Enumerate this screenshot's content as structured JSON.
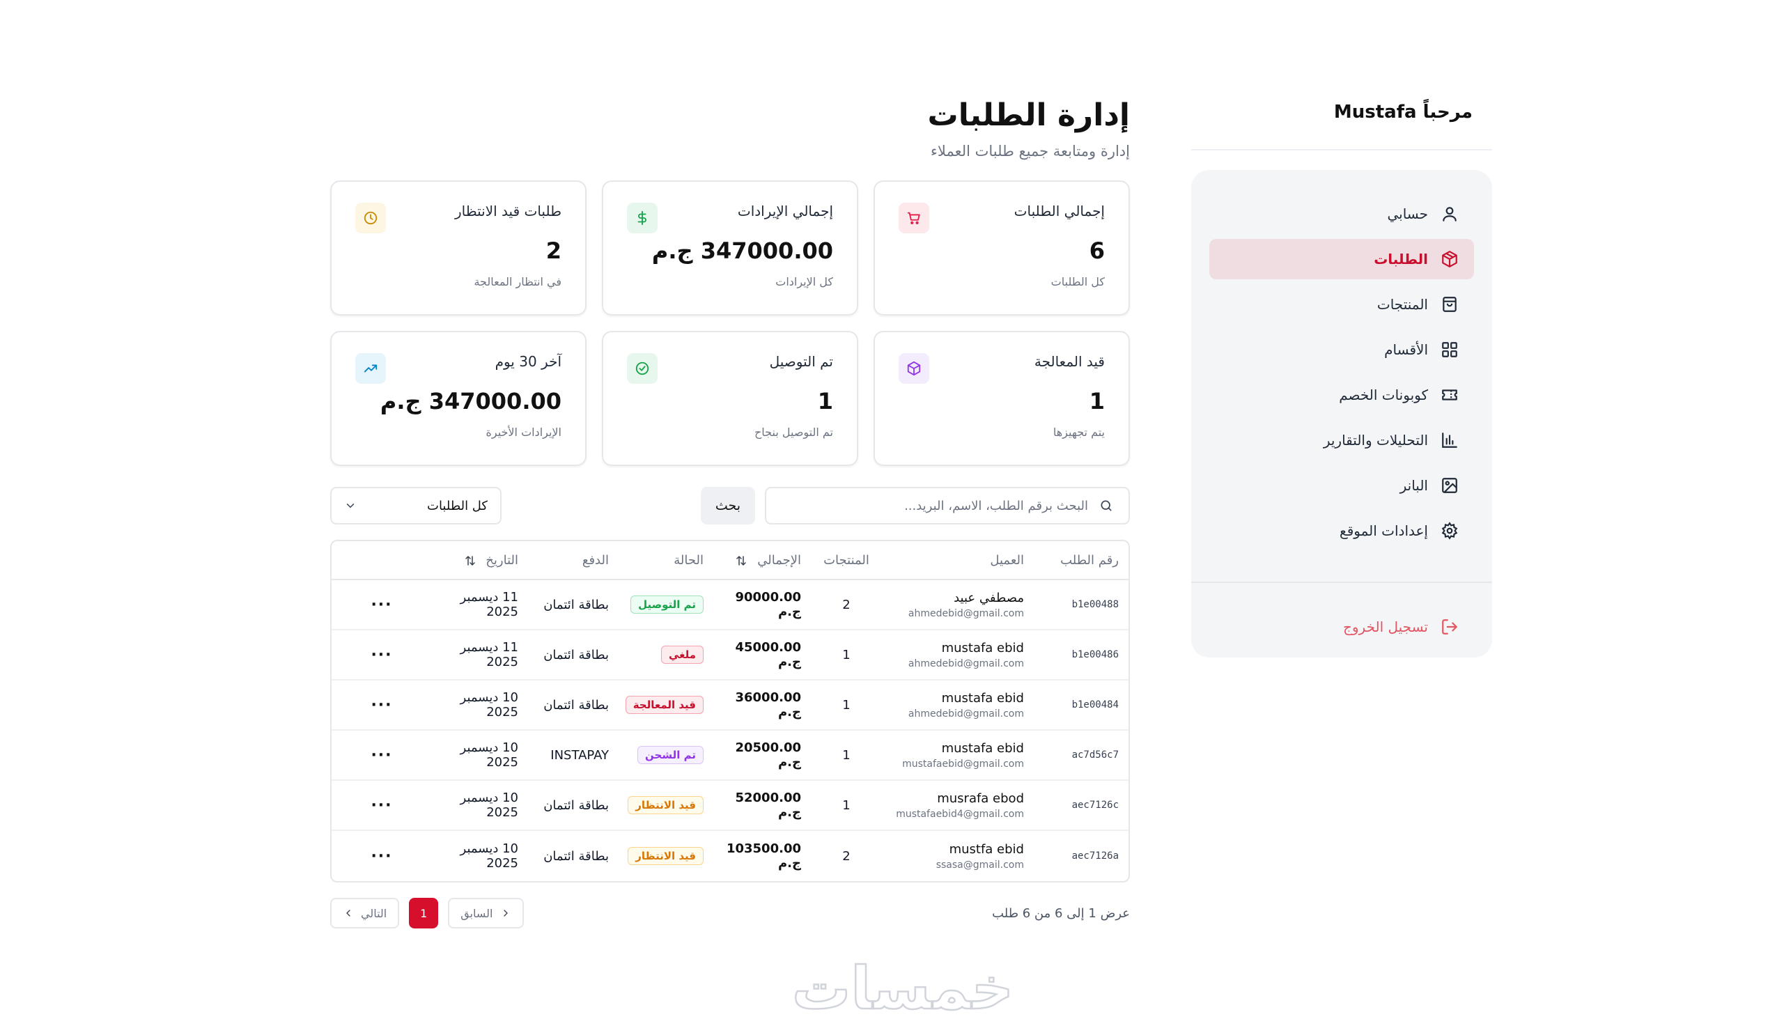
{
  "sidebar": {
    "welcome": "مرحباً Mustafa",
    "items": [
      {
        "label": "حسابي",
        "icon": "user-icon"
      },
      {
        "label": "الطلبات",
        "icon": "box-icon"
      },
      {
        "label": "المنتجات",
        "icon": "bag-icon"
      },
      {
        "label": "الأقسام",
        "icon": "grid-icon"
      },
      {
        "label": "كوبونات الخصم",
        "icon": "ticket-icon"
      },
      {
        "label": "التحليلات والتقارير",
        "icon": "bar-chart-icon"
      },
      {
        "label": "البانر",
        "icon": "image-icon"
      },
      {
        "label": "إعدادات الموقع",
        "icon": "gear-icon"
      }
    ],
    "logout": "تسجيل الخروج"
  },
  "header": {
    "title": "إدارة الطلبات",
    "subtitle": "إدارة ومتابعة جميع طلبات العملاء"
  },
  "stats": [
    {
      "label": "إجمالي الطلبات",
      "value": "6",
      "note": "كل الطلبات",
      "icon": "cart-icon",
      "color": "#e11d48",
      "bg": "#fde8ec"
    },
    {
      "label": "إجمالي الإيرادات",
      "value": "347000.00 ج.م",
      "note": "كل الإيرادات",
      "icon": "dollar-icon",
      "color": "#16a34a",
      "bg": "#e8f7ee"
    },
    {
      "label": "طلبات قيد الانتظار",
      "value": "2",
      "note": "في انتظار المعالجة",
      "icon": "clock-icon",
      "color": "#ca8a04",
      "bg": "#fdf6e3"
    },
    {
      "label": "قيد المعالجة",
      "value": "1",
      "note": "يتم تجهيزها",
      "icon": "cube-icon",
      "color": "#9333ea",
      "bg": "#f3ecfd"
    },
    {
      "label": "تم التوصيل",
      "value": "1",
      "note": "تم التوصيل بنجاح",
      "icon": "check-circle-icon",
      "color": "#16a34a",
      "bg": "#e8f7ee"
    },
    {
      "label": "آخر 30 يوم",
      "value": "347000.00 ج.م",
      "note": "الإيرادات الأخيرة",
      "icon": "trend-up-icon",
      "color": "#0284c7",
      "bg": "#e6f4fb"
    }
  ],
  "toolbar": {
    "search_placeholder": "البحث برقم الطلب، الاسم، البريد...",
    "search_button": "بحث",
    "filter_value": "كل الطلبات"
  },
  "table": {
    "headers": {
      "id": "رقم الطلب",
      "customer": "العميل",
      "products": "المنتجات",
      "total": "الإجمالي",
      "status": "الحالة",
      "payment": "الدفع",
      "date": "التاريخ"
    },
    "rows": [
      {
        "id": "b1e00488",
        "name": "مصطفي عبيد",
        "email": "ahmedebid@gmail.com",
        "products": "2",
        "total": "90000.00 ج.م",
        "status": "تم التوصيل",
        "status_class": "b-green",
        "payment": "بطاقة ائتمان",
        "date": "11 ديسمبر 2025",
        "actions": "···"
      },
      {
        "id": "b1e00486",
        "name": "mustafa ebid",
        "email": "ahmedebid@gmail.com",
        "products": "1",
        "total": "45000.00 ج.م",
        "status": "ملغي",
        "status_class": "b-red",
        "payment": "بطاقة ائتمان",
        "date": "11 ديسمبر 2025",
        "actions": "···"
      },
      {
        "id": "b1e00484",
        "name": "mustafa ebid",
        "email": "ahmedebid@gmail.com",
        "products": "1",
        "total": "36000.00 ج.م",
        "status": "قيد المعالجة",
        "status_class": "b-red",
        "payment": "بطاقة ائتمان",
        "date": "10 ديسمبر 2025",
        "actions": "···"
      },
      {
        "id": "ac7d56c7",
        "name": "mustafa ebid",
        "email": "mustafaebid@gmail.com",
        "products": "1",
        "total": "20500.00 ج.م",
        "status": "تم الشحن",
        "status_class": "b-purple",
        "payment": "INSTAPAY",
        "date": "10 ديسمبر 2025",
        "actions": "···"
      },
      {
        "id": "aec7126c",
        "name": "musrafa ebod",
        "email": "mustafaebid4@gmail.com",
        "products": "1",
        "total": "52000.00 ج.م",
        "status": "قيد الانتظار",
        "status_class": "b-amber",
        "payment": "بطاقة ائتمان",
        "date": "10 ديسمبر 2025",
        "actions": "···"
      },
      {
        "id": "aec7126a",
        "name": "mustfa ebid",
        "email": "ssasa@gmail.com",
        "products": "2",
        "total": "103500.00 ج.م",
        "status": "قيد الانتظار",
        "status_class": "b-amber",
        "payment": "بطاقة ائتمان",
        "date": "10 ديسمبر 2025",
        "actions": "···"
      }
    ]
  },
  "pagination": {
    "info": "عرض 1 إلى 6 من 6 طلب",
    "prev": "السابق",
    "current": "1",
    "next": "التالي"
  },
  "watermark": "خمسات",
  "colors": {
    "accent": "#d50f2c",
    "active_bg": "#efdde1"
  }
}
